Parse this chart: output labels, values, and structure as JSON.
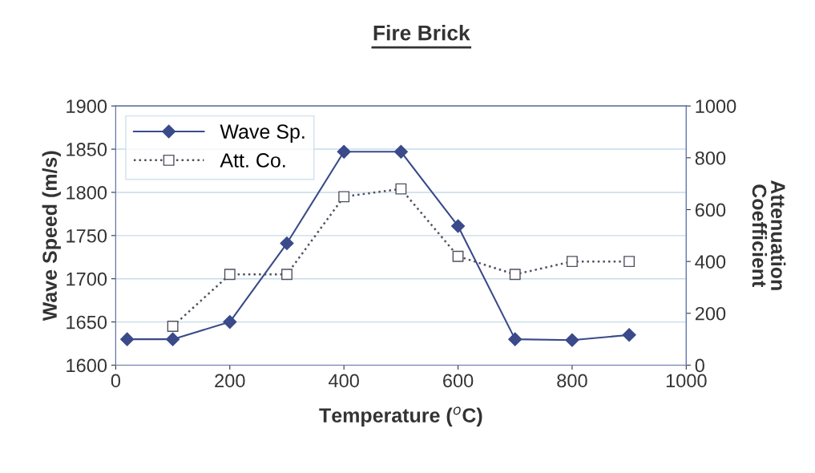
{
  "chart_data": {
    "type": "line",
    "title": "Fire Brick",
    "xlabel": "Temperature ($^{o}$C)",
    "ylabel": "Wave Speed (m/s)",
    "y2label": "Attenuation\nCoefficient",
    "series": [
      {
        "name": "Wave Sp.",
        "color": "#3a4a8a",
        "marker": "diamond",
        "line_style": "solid",
        "x": [
          20,
          100,
          200,
          300,
          400,
          500,
          600,
          700,
          800,
          900
        ],
        "values": [
          1630,
          1630,
          1650,
          1741,
          1847,
          1847,
          1761,
          1630,
          1629,
          1635
        ]
      },
      {
        "name": "Att. Co.",
        "color": "#505060",
        "marker": "square",
        "line_style": "dotted",
        "axis": "y2",
        "x": [
          100,
          200,
          300,
          400,
          500,
          600,
          700,
          800,
          900
        ],
        "values": [
          150,
          350,
          350,
          650,
          680,
          420,
          350,
          400,
          400
        ]
      }
    ],
    "xlim": [
      0,
      1000
    ],
    "xticks": [
      0,
      200,
      400,
      600,
      800,
      1000
    ],
    "ylim": [
      1600,
      1900
    ],
    "yticks": [
      1600,
      1650,
      1700,
      1750,
      1800,
      1850,
      1900
    ],
    "y2lim": [
      0,
      1000
    ],
    "y2ticks": [
      0,
      200,
      400,
      600,
      800,
      1000
    ],
    "grid": "y",
    "legend": "top left"
  }
}
